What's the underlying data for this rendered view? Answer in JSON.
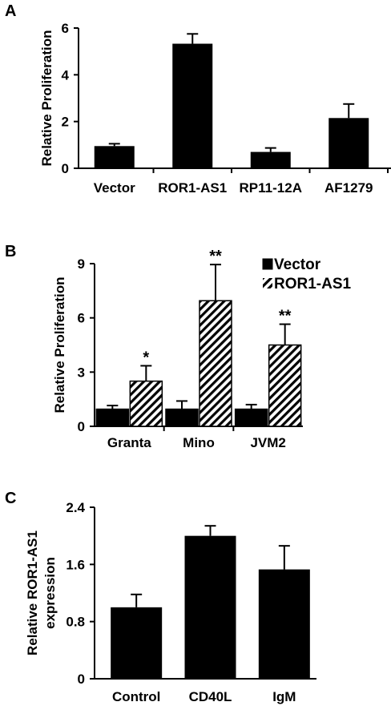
{
  "chart_data": [
    {
      "panel": "A",
      "type": "bar",
      "ylabel": "Relative Proliferation",
      "categories": [
        "Vector",
        "ROR1-AS1",
        "RP11-12A",
        "AF1279"
      ],
      "values": [
        0.95,
        5.33,
        0.7,
        2.15
      ],
      "errors": [
        0.1,
        0.42,
        0.17,
        0.6
      ],
      "ylim": [
        0,
        6
      ],
      "yticks": [
        "0",
        "2",
        "4",
        "6"
      ],
      "bar_color": "#000000",
      "grid": false
    },
    {
      "panel": "B",
      "type": "bar",
      "ylabel": "Relative Proliferation",
      "categories": [
        "Granta",
        "Mino",
        "JVM2"
      ],
      "series": [
        {
          "name": "Vector",
          "values": [
            0.95,
            0.95,
            0.95
          ],
          "errors": [
            0.2,
            0.45,
            0.25
          ],
          "fill": "solid"
        },
        {
          "name": "ROR1-AS1",
          "values": [
            2.5,
            6.95,
            4.5
          ],
          "errors": [
            0.85,
            2.0,
            1.15
          ],
          "fill": "hatched"
        }
      ],
      "significance": [
        "*",
        "**",
        "**"
      ],
      "ylim": [
        0,
        9
      ],
      "yticks": [
        "0",
        "3",
        "6",
        "9"
      ],
      "legend_position": "top-right",
      "grid": false
    },
    {
      "panel": "C",
      "type": "bar",
      "ylabel": "Relative ROR1-AS1 expression",
      "ylabel_lines": [
        "Relative ROR1-AS1",
        "expression"
      ],
      "categories": [
        "Control",
        "CD40L",
        "IgM"
      ],
      "values": [
        1.0,
        2.0,
        1.53
      ],
      "errors": [
        0.18,
        0.14,
        0.33
      ],
      "ylim": [
        0,
        2.4
      ],
      "yticks": [
        "0",
        "0.8",
        "1.6",
        "2.4"
      ],
      "bar_color": "#000000",
      "grid": false
    }
  ]
}
